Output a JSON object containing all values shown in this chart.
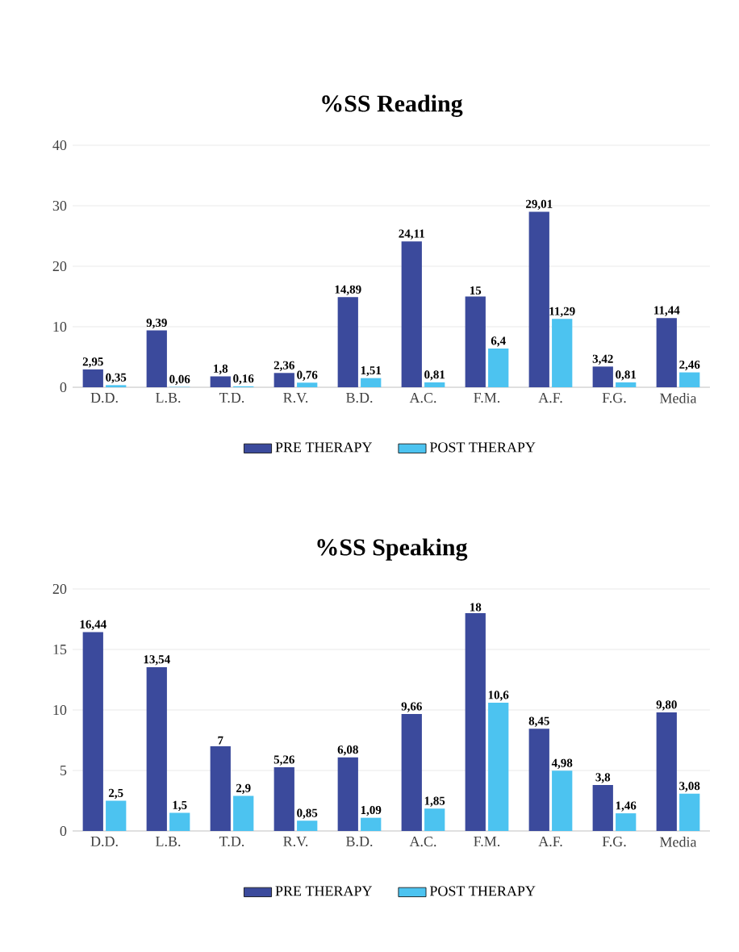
{
  "chart_data": [
    {
      "type": "bar",
      "title": "%SS Reading",
      "categories": [
        "D.D.",
        "L.B.",
        "T.D.",
        "R.V.",
        "B.D.",
        "A.C.",
        "F.M.",
        "A.F.",
        "F.G.",
        "Media"
      ],
      "series": [
        {
          "name": "PRE THERAPY",
          "color": "#3b4a9c",
          "values": [
            2.95,
            9.39,
            1.8,
            2.36,
            14.89,
            24.11,
            15,
            29.01,
            3.42,
            11.44
          ],
          "value_labels": [
            "2,95",
            "9,39",
            "1,8",
            "2,36",
            "14,89",
            "24,11",
            "15",
            "29,01",
            "3,42",
            "11,44"
          ]
        },
        {
          "name": "POST THERAPY",
          "color": "#4cc3f0",
          "values": [
            0.35,
            0.06,
            0.16,
            0.76,
            1.51,
            0.81,
            6.4,
            11.29,
            0.81,
            2.46
          ],
          "value_labels": [
            "0,35",
            "0,06",
            "0,16",
            "0,76",
            "1,51",
            "0,81",
            "6,4",
            "11,29",
            "0,81",
            "2,46"
          ]
        }
      ],
      "ylim": [
        0,
        40
      ],
      "yticks": [
        0,
        10,
        20,
        30,
        40
      ],
      "grid": "y",
      "legend": "bottom"
    },
    {
      "type": "bar",
      "title": "%SS Speaking",
      "categories": [
        "D.D.",
        "L.B.",
        "T.D.",
        "R.V.",
        "B.D.",
        "A.C.",
        "F.M.",
        "A.F.",
        "F.G.",
        "Media"
      ],
      "series": [
        {
          "name": "PRE THERAPY",
          "color": "#3b4a9c",
          "values": [
            16.44,
            13.54,
            7,
            5.26,
            6.08,
            9.66,
            18,
            8.45,
            3.8,
            9.8
          ],
          "value_labels": [
            "16,44",
            "13,54",
            "7",
            "5,26",
            "6,08",
            "9,66",
            "18",
            "8,45",
            "3,8",
            "9,80"
          ]
        },
        {
          "name": "POST THERAPY",
          "color": "#4cc3f0",
          "values": [
            2.5,
            1.5,
            2.9,
            0.85,
            1.09,
            1.85,
            10.6,
            4.98,
            1.46,
            3.08
          ],
          "value_labels": [
            "2,5",
            "1,5",
            "2,9",
            "0,85",
            "1,09",
            "1,85",
            "10,6",
            "4,98",
            "1,46",
            "3,08"
          ]
        }
      ],
      "ylim": [
        0,
        20
      ],
      "yticks": [
        0,
        5,
        10,
        15,
        20
      ],
      "grid": "y",
      "legend": "bottom"
    }
  ]
}
